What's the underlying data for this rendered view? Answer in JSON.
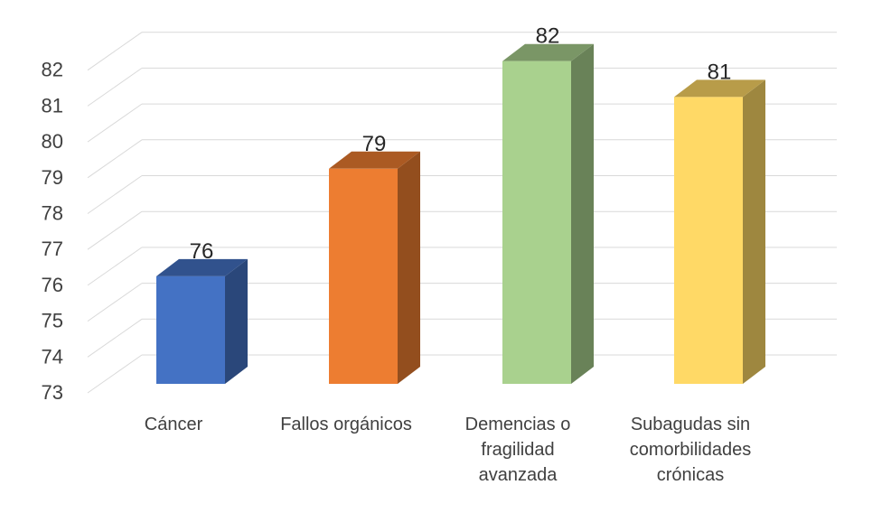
{
  "chart_data": {
    "type": "bar",
    "style": "3d-column",
    "categories": [
      "Cáncer",
      "Fallos orgánicos",
      "Demencias o\nfragilidad\navanzada",
      "Subagudas sin\ncomorbilidades\ncrónicas"
    ],
    "values": [
      76,
      79,
      82,
      81
    ],
    "data_labels": [
      "76",
      "79",
      "82",
      "81"
    ],
    "colors": [
      "#4472C4",
      "#ED7D31",
      "#A9D18E",
      "#FFD966"
    ],
    "ylim": [
      73,
      82
    ],
    "yticks": [
      "73",
      "74",
      "75",
      "76",
      "77",
      "78",
      "79",
      "80",
      "81",
      "82"
    ],
    "title": "",
    "xlabel": "",
    "ylabel": "",
    "grid": true,
    "legend": "none"
  }
}
